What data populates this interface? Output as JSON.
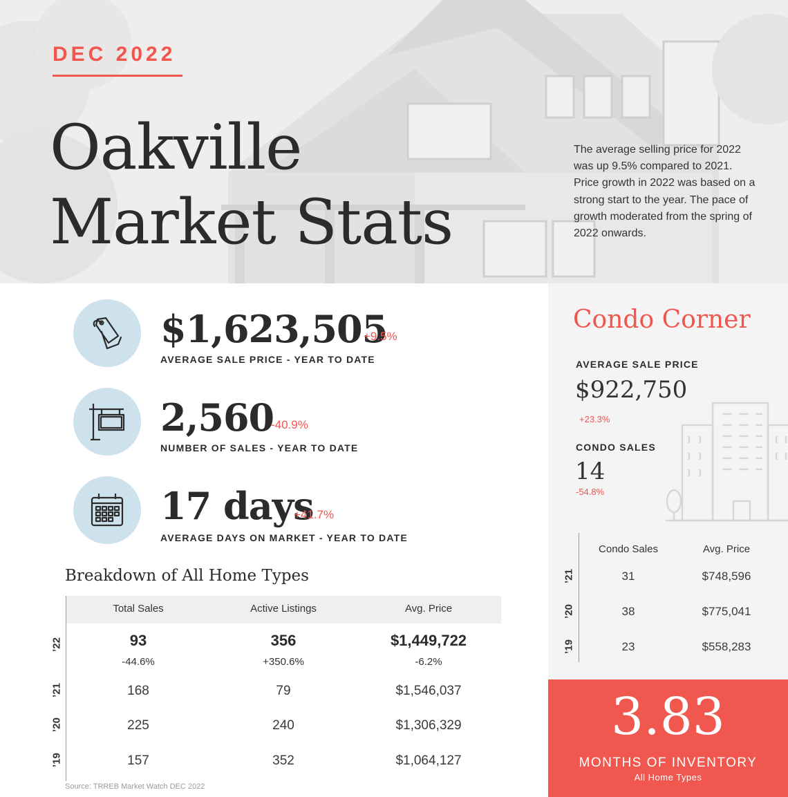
{
  "header": {
    "month": "DEC 2022",
    "title_line1": "Oakville",
    "title_line2": "Market Stats",
    "summary": "The average selling price for 2022 was up 9.5% compared to 2021.  Price growth in 2022 was based on a strong start to the year. The pace of growth moderated from the spring of 2022 onwards."
  },
  "stats": [
    {
      "icon": "price-tag-icon",
      "value": "$1,623,505",
      "change": "+9.5%",
      "label": "AVERAGE SALE PRICE - YEAR TO DATE"
    },
    {
      "icon": "for-sale-sign-icon",
      "value": "2,560",
      "change": "-40.9%",
      "label": "NUMBER OF SALES - YEAR TO DATE"
    },
    {
      "icon": "calendar-icon",
      "value": "17 days",
      "change": "+41.7%",
      "label": "AVERAGE DAYS ON MARKET - YEAR TO DATE"
    }
  ],
  "breakdown": {
    "title": "Breakdown of All Home Types",
    "columns": [
      "Total Sales",
      "Active Listings",
      "Avg. Price"
    ],
    "current": {
      "year": "’22",
      "values": [
        "93",
        "356",
        "$1,449,722"
      ],
      "changes": [
        "-44.6%",
        "+350.6%",
        "-6.2%"
      ]
    },
    "rows": [
      {
        "year": "’21",
        "values": [
          "168",
          "79",
          "$1,546,037"
        ]
      },
      {
        "year": "’20",
        "values": [
          "225",
          "240",
          "$1,306,329"
        ]
      },
      {
        "year": "’19",
        "values": [
          "157",
          "352",
          "$1,064,127"
        ]
      }
    ],
    "source": "Source: TRREB Market Watch DEC 2022"
  },
  "condo": {
    "title": "Condo Corner",
    "avg_price_label": "AVERAGE SALE PRICE",
    "avg_price": "$922,750",
    "avg_price_change": "+23.3%",
    "sales_label": "CONDO SALES",
    "sales": "14",
    "sales_change": "-54.8%",
    "columns": [
      "Condo Sales",
      "Avg. Price"
    ],
    "rows": [
      {
        "year": "’21",
        "values": [
          "31",
          "$748,596"
        ]
      },
      {
        "year": "’20",
        "values": [
          "38",
          "$775,041"
        ]
      },
      {
        "year": "’19",
        "values": [
          "23",
          "$558,283"
        ]
      }
    ]
  },
  "inventory": {
    "value": "3.83",
    "label": "MONTHS OF INVENTORY",
    "sublabel": "All Home Types"
  },
  "colors": {
    "accent": "#f0564e",
    "icon_circle": "#cde2ec",
    "text_dark": "#2b2b2b"
  }
}
